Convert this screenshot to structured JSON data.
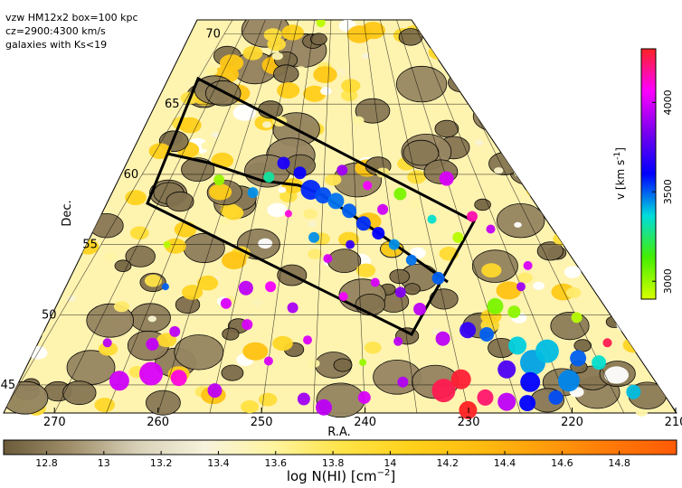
{
  "chart_data": {
    "type": "scatter",
    "annotations": [
      "vzw HM12x2 box=100 kpc",
      "cz=2900:4300 km/s",
      "galaxies with Ks<19"
    ],
    "xlabel": "R.A.",
    "ylabel": "Dec.",
    "x_ticks": [
      270,
      260,
      250,
      240,
      230,
      220,
      210
    ],
    "y_ticks": [
      45,
      50,
      55,
      60,
      65,
      70
    ],
    "xlim": [
      210,
      275
    ],
    "ylim": [
      43,
      71
    ],
    "background_map": {
      "quantity": "log N(HI)",
      "colorbar_label": "log N(HI) [cm^-2]",
      "ticks": [
        "12.8",
        "13",
        "13.2",
        "13.4",
        "13.6",
        "13.8",
        "14",
        "14.2",
        "14.4",
        "14.6",
        "14.8"
      ],
      "range": [
        12.65,
        15.0
      ],
      "colors": [
        "#6b5b3a",
        "#a08f6a",
        "#d8d1b8",
        "#f7f3dc",
        "#fff4a0",
        "#ffe44a",
        "#ffd21c",
        "#ffbe10",
        "#ff9e0c",
        "#ff7a08",
        "#ff5a06"
      ]
    },
    "velocity_colorbar": {
      "label": "v [km s^-1]",
      "ticks": [
        "3000",
        "3500",
        "4000"
      ],
      "range": [
        2900,
        4300
      ],
      "colors": [
        "#d8ff00",
        "#44ee00",
        "#00dddd",
        "#0000ff",
        "#7a00ee",
        "#ff00ff",
        "#ff2222"
      ]
    },
    "boxes": [
      {
        "ra": [
          258,
          248,
          236,
          230,
          226,
          233,
          258
        ]
      },
      {
        "ra": [
          258,
          258,
          249,
          239,
          233,
          233
        ]
      }
    ],
    "series": [
      {
        "kind": "galaxies",
        "points": [
          {
            "ra": 247,
            "dec": 58.9,
            "v": 3560,
            "s": 11
          },
          {
            "ra": 245,
            "dec": 58.5,
            "v": 3520,
            "s": 9
          },
          {
            "ra": 243,
            "dec": 58.1,
            "v": 3480,
            "s": 9
          },
          {
            "ra": 241,
            "dec": 57.4,
            "v": 3500,
            "s": 8
          },
          {
            "ra": 239,
            "dec": 56.5,
            "v": 3550,
            "s": 8
          },
          {
            "ra": 237,
            "dec": 55.8,
            "v": 3600,
            "s": 7
          },
          {
            "ra": 235,
            "dec": 55.0,
            "v": 3450,
            "s": 6
          },
          {
            "ra": 233,
            "dec": 53.9,
            "v": 3480,
            "s": 6
          },
          {
            "ra": 230,
            "dec": 52.6,
            "v": 3500,
            "s": 7
          },
          {
            "ra": 249,
            "dec": 60.1,
            "v": 3620,
            "s": 7
          },
          {
            "ra": 252,
            "dec": 60.8,
            "v": 3650,
            "s": 7
          },
          {
            "ra": 254,
            "dec": 59.8,
            "v": 3300,
            "s": 6
          },
          {
            "ra": 242,
            "dec": 60.3,
            "v": 3900,
            "s": 6
          },
          {
            "ra": 238,
            "dec": 59.2,
            "v": 4050,
            "s": 5
          },
          {
            "ra": 236,
            "dec": 57.5,
            "v": 3980,
            "s": 6
          },
          {
            "ra": 233,
            "dec": 58.6,
            "v": 3050,
            "s": 7
          },
          {
            "ra": 225,
            "dec": 59.7,
            "v": 4000,
            "s": 8
          },
          {
            "ra": 223,
            "dec": 57.0,
            "v": 4150,
            "s": 6
          },
          {
            "ra": 221,
            "dec": 56.1,
            "v": 3960,
            "s": 5
          },
          {
            "ra": 226,
            "dec": 55.5,
            "v": 2950,
            "s": 6
          },
          {
            "ra": 229,
            "dec": 56.8,
            "v": 3350,
            "s": 5
          },
          {
            "ra": 241,
            "dec": 55.0,
            "v": 3700,
            "s": 5
          },
          {
            "ra": 244,
            "dec": 54.0,
            "v": 4000,
            "s": 5
          },
          {
            "ra": 246,
            "dec": 55.5,
            "v": 3450,
            "s": 6
          },
          {
            "ra": 250,
            "dec": 57.2,
            "v": 4100,
            "s": 4
          },
          {
            "ra": 256,
            "dec": 58.7,
            "v": 3450,
            "s": 6
          },
          {
            "ra": 262,
            "dec": 59.6,
            "v": 3000,
            "s": 6
          },
          {
            "ra": 254,
            "dec": 51.9,
            "v": 3950,
            "s": 8
          },
          {
            "ra": 256,
            "dec": 50.8,
            "v": 4000,
            "s": 6
          },
          {
            "ra": 251,
            "dec": 52.0,
            "v": 4050,
            "s": 6
          },
          {
            "ra": 248,
            "dec": 50.5,
            "v": 3920,
            "s": 6
          },
          {
            "ra": 253,
            "dec": 49.3,
            "v": 4000,
            "s": 6
          },
          {
            "ra": 261,
            "dec": 48.8,
            "v": 3950,
            "s": 6
          },
          {
            "ra": 263,
            "dec": 47.9,
            "v": 3960,
            "s": 7
          },
          {
            "ra": 262,
            "dec": 45.8,
            "v": 4000,
            "s": 13
          },
          {
            "ra": 265,
            "dec": 45.3,
            "v": 3980,
            "s": 11
          },
          {
            "ra": 259,
            "dec": 45.5,
            "v": 4100,
            "s": 9
          },
          {
            "ra": 255,
            "dec": 44.6,
            "v": 3950,
            "s": 8
          },
          {
            "ra": 246,
            "dec": 44.0,
            "v": 3900,
            "s": 7
          },
          {
            "ra": 244,
            "dec": 43.4,
            "v": 3950,
            "s": 9
          },
          {
            "ra": 240,
            "dec": 44.1,
            "v": 4000,
            "s": 7
          },
          {
            "ra": 236,
            "dec": 45.2,
            "v": 3930,
            "s": 6
          },
          {
            "ra": 232,
            "dec": 44.6,
            "v": 4250,
            "s": 13
          },
          {
            "ra": 230,
            "dec": 45.4,
            "v": 4280,
            "s": 11
          },
          {
            "ra": 228,
            "dec": 44.1,
            "v": 4220,
            "s": 9
          },
          {
            "ra": 230,
            "dec": 43.2,
            "v": 4300,
            "s": 10
          },
          {
            "ra": 226,
            "dec": 43.8,
            "v": 3950,
            "s": 10
          },
          {
            "ra": 222,
            "dec": 46.6,
            "v": 3430,
            "s": 14
          },
          {
            "ra": 220,
            "dec": 47.4,
            "v": 3400,
            "s": 13
          },
          {
            "ra": 223,
            "dec": 47.8,
            "v": 3380,
            "s": 10
          },
          {
            "ra": 219,
            "dec": 45.3,
            "v": 3460,
            "s": 12
          },
          {
            "ra": 223,
            "dec": 45.2,
            "v": 3600,
            "s": 11
          },
          {
            "ra": 225,
            "dec": 46.1,
            "v": 3750,
            "s": 10
          },
          {
            "ra": 217,
            "dec": 46.9,
            "v": 3500,
            "s": 9
          },
          {
            "ra": 215,
            "dec": 46.6,
            "v": 3350,
            "s": 8
          },
          {
            "ra": 213,
            "dec": 44.5,
            "v": 3400,
            "s": 8
          },
          {
            "ra": 224,
            "dec": 43.7,
            "v": 3600,
            "s": 9
          },
          {
            "ra": 221,
            "dec": 44.1,
            "v": 3520,
            "s": 8
          },
          {
            "ra": 228,
            "dec": 48.9,
            "v": 3700,
            "s": 9
          },
          {
            "ra": 231,
            "dec": 48.3,
            "v": 3950,
            "s": 8
          },
          {
            "ra": 226,
            "dec": 48.6,
            "v": 3500,
            "s": 8
          },
          {
            "ra": 224,
            "dec": 50.6,
            "v": 3050,
            "s": 9
          },
          {
            "ra": 222,
            "dec": 50.2,
            "v": 3020,
            "s": 7
          },
          {
            "ra": 215,
            "dec": 49.8,
            "v": 2950,
            "s": 6
          },
          {
            "ra": 233,
            "dec": 50.4,
            "v": 3950,
            "s": 7
          },
          {
            "ra": 235,
            "dec": 51.6,
            "v": 3850,
            "s": 6
          },
          {
            "ra": 238,
            "dec": 52.3,
            "v": 4000,
            "s": 5
          },
          {
            "ra": 242,
            "dec": 51.3,
            "v": 4050,
            "s": 5
          },
          {
            "ra": 246,
            "dec": 48.2,
            "v": 4000,
            "s": 5
          },
          {
            "ra": 236,
            "dec": 48.1,
            "v": 3950,
            "s": 5
          },
          {
            "ra": 240,
            "dec": 46.6,
            "v": 3000,
            "s": 4
          },
          {
            "ra": 250,
            "dec": 46.7,
            "v": 4000,
            "s": 5
          },
          {
            "ra": 268,
            "dec": 48.0,
            "v": 3950,
            "s": 5
          },
          {
            "ra": 264,
            "dec": 52.0,
            "v": 3500,
            "s": 4
          },
          {
            "ra": 266,
            "dec": 55.0,
            "v": 2950,
            "s": 4
          },
          {
            "ra": 218,
            "dec": 53.5,
            "v": 4000,
            "s": 5
          },
          {
            "ra": 220,
            "dec": 52.0,
            "v": 3900,
            "s": 5
          },
          {
            "ra": 213,
            "dec": 48.0,
            "v": 4250,
            "s": 5
          },
          {
            "ra": 248,
            "dec": 70.8,
            "v": 2950,
            "s": 5
          },
          {
            "ra": 242,
            "dec": 71.3,
            "v": 4280,
            "s": 4
          }
        ]
      }
    ]
  }
}
